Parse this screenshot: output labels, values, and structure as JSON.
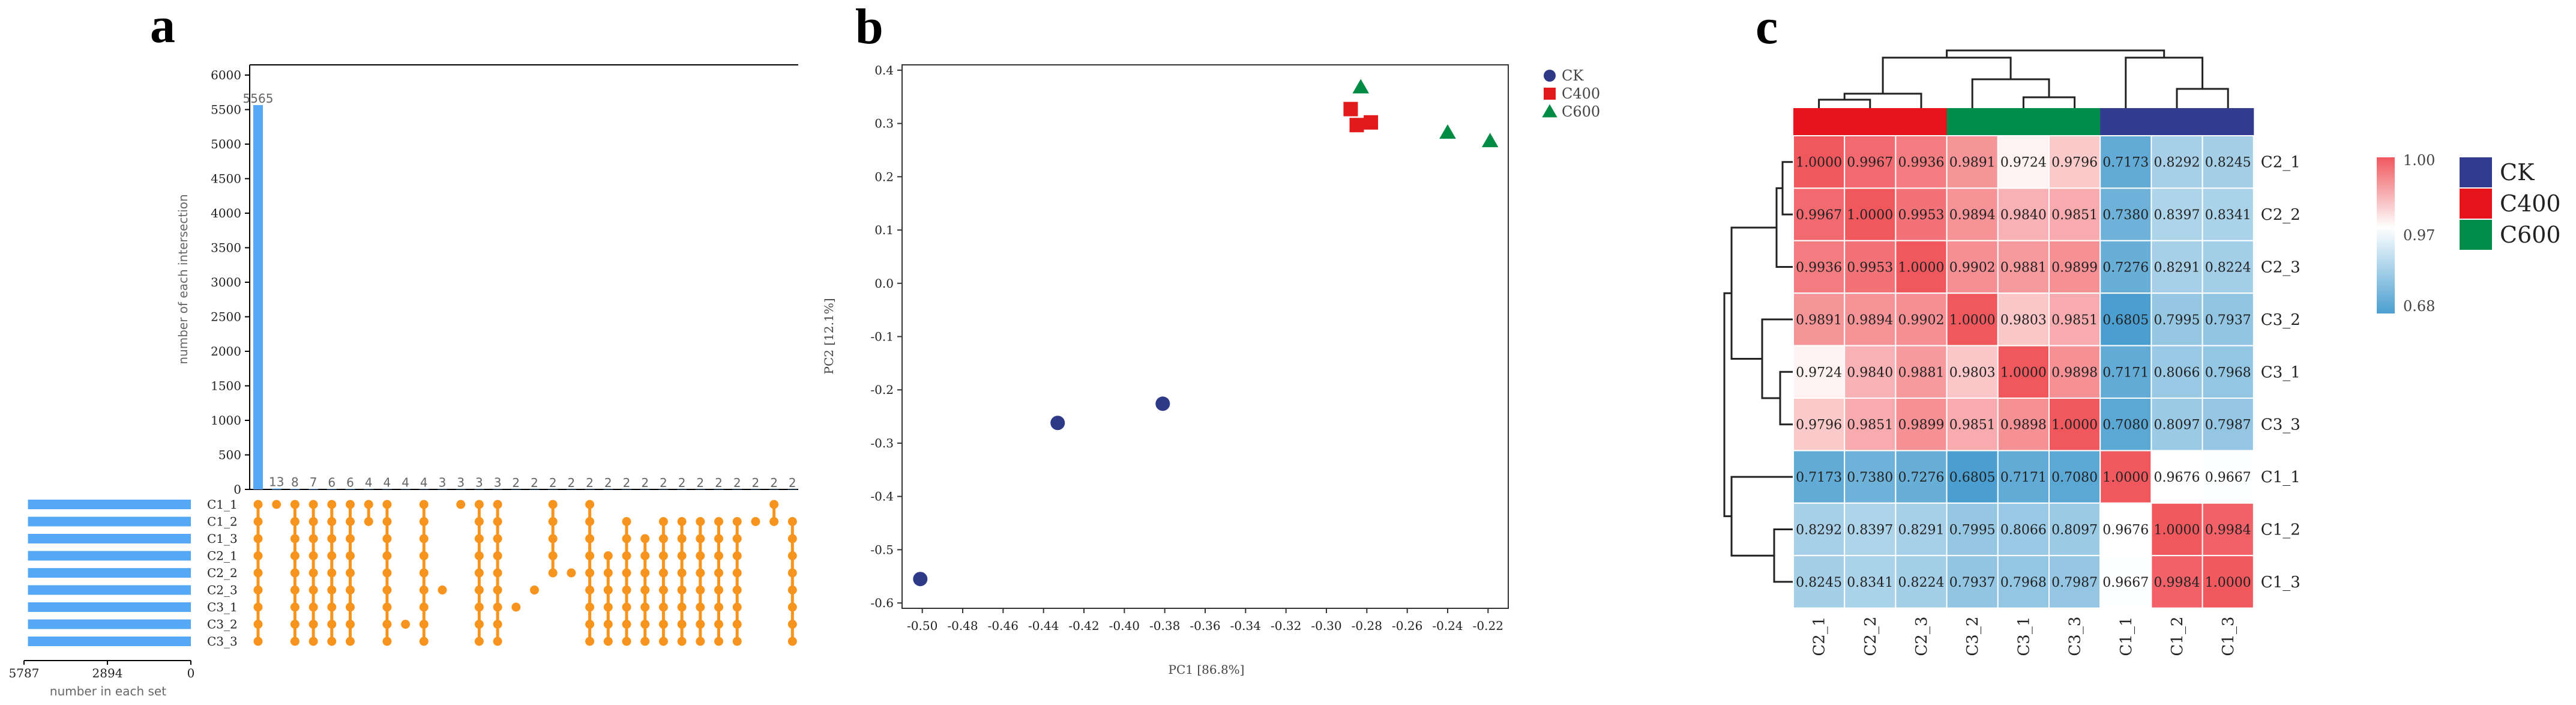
{
  "panels": {
    "a": "a",
    "b": "b",
    "c": "c"
  },
  "chart_data": [
    {
      "type": "bar",
      "panel": "a",
      "ylabel": "number of each intersection",
      "ylim": [
        0,
        6000
      ],
      "yticks": [
        "0",
        "500",
        "1000",
        "1500",
        "2000",
        "2500",
        "3000",
        "3500",
        "4000",
        "4500",
        "5000",
        "5500",
        "6000"
      ],
      "values": [
        5565,
        13,
        8,
        7,
        6,
        6,
        4,
        4,
        4,
        4,
        3,
        3,
        3,
        3,
        2,
        2,
        2,
        2,
        2,
        2,
        2,
        2,
        2,
        2,
        2,
        2,
        2,
        2,
        2,
        2
      ],
      "value_labels": [
        "5565",
        "13",
        "8",
        "7",
        "6",
        "6",
        "4",
        "4",
        "4",
        "4",
        "3",
        "3",
        "3",
        "3",
        "2",
        "2",
        "2",
        "2",
        "2",
        "2",
        "2",
        "2",
        "2",
        "2",
        "2",
        "2",
        "2",
        "2",
        "2",
        "2"
      ],
      "sets": [
        "C1_1",
        "C1_2",
        "C1_3",
        "C2_1",
        "C2_2",
        "C2_3",
        "C3_1",
        "C3_2",
        "C3_3"
      ],
      "set_size_label": "number in each set",
      "set_size_ticks": [
        "5787",
        "2894",
        "0"
      ],
      "set_size_max": 5787,
      "set_sizes": [
        5650,
        5650,
        5650,
        5650,
        5650,
        5650,
        5650,
        5650,
        5650
      ],
      "matrix": [
        [
          0,
          1,
          2,
          3,
          4,
          5,
          6,
          7,
          8
        ],
        [
          0
        ],
        [
          0,
          1,
          2,
          3,
          4,
          5,
          6,
          7,
          8
        ],
        [
          0,
          1,
          2,
          3,
          4,
          5,
          6,
          7,
          8
        ],
        [
          0,
          1,
          2,
          3,
          4,
          5,
          6,
          7,
          8
        ],
        [
          0,
          1,
          2,
          3,
          4,
          5,
          6,
          7,
          8
        ],
        [
          0,
          1
        ],
        [
          0,
          1,
          2,
          3,
          4,
          5,
          6,
          7,
          8
        ],
        [
          7
        ],
        [
          0,
          1,
          2,
          3,
          4,
          5,
          6,
          7,
          8
        ],
        [
          5
        ],
        [
          0
        ],
        [
          0,
          1,
          2,
          3,
          4,
          5,
          6,
          7,
          8
        ],
        [
          0,
          1,
          2,
          3,
          4,
          5,
          6,
          7,
          8
        ],
        [
          6
        ],
        [
          5
        ],
        [
          0,
          1,
          2,
          3,
          4
        ],
        [
          4
        ],
        [
          0,
          1,
          2,
          3,
          4,
          5,
          6,
          7,
          8
        ],
        [
          3,
          4,
          5,
          6,
          7,
          8
        ],
        [
          1,
          2,
          3,
          4,
          5,
          6,
          7,
          8
        ],
        [
          2,
          3,
          4,
          5,
          6,
          7,
          8
        ],
        [
          1,
          2,
          3,
          4,
          5,
          6,
          7,
          8
        ],
        [
          1,
          2,
          3,
          4,
          5,
          6,
          7,
          8
        ],
        [
          1,
          2,
          3,
          4,
          5,
          6,
          7,
          8
        ],
        [
          1,
          2,
          3,
          4,
          5,
          6,
          7,
          8
        ],
        [
          1,
          2,
          3,
          4,
          5,
          6,
          7,
          8
        ],
        [
          1
        ],
        [
          0,
          1
        ],
        [
          1,
          2,
          3,
          4,
          5,
          6,
          7,
          8
        ]
      ],
      "bar_color": "#55a8f5",
      "dot_color": "#f7941d"
    },
    {
      "type": "scatter",
      "panel": "b",
      "xlabel": "PC1 [86.8%]",
      "ylabel": "PC2 [12.1%]",
      "xlim": [
        -0.51,
        -0.21
      ],
      "ylim": [
        -0.61,
        0.41
      ],
      "xticks": [
        "-0.50",
        "-0.48",
        "-0.46",
        "-0.44",
        "-0.42",
        "-0.40",
        "-0.38",
        "-0.36",
        "-0.34",
        "-0.32",
        "-0.30",
        "-0.28",
        "-0.26",
        "-0.24",
        "-0.22"
      ],
      "yticks": [
        "-0.6",
        "-0.5",
        "-0.4",
        "-0.3",
        "-0.2",
        "-0.1",
        "0.0",
        "0.1",
        "0.2",
        "0.3",
        "0.4"
      ],
      "legend_position": "top-right",
      "series": [
        {
          "name": "CK",
          "color": "#2e3a87",
          "marker": "circle",
          "x": [
            -0.501,
            -0.433,
            -0.381
          ],
          "y": [
            -0.555,
            -0.262,
            -0.226
          ]
        },
        {
          "name": "C400",
          "color": "#e31a1c",
          "marker": "square",
          "x": [
            -0.288,
            -0.285,
            -0.278
          ],
          "y": [
            0.327,
            0.297,
            0.302
          ]
        },
        {
          "name": "C600",
          "color": "#008b45",
          "marker": "triangle",
          "x": [
            -0.283,
            -0.24,
            -0.219
          ],
          "y": [
            0.368,
            0.283,
            0.267
          ]
        }
      ]
    },
    {
      "type": "heatmap",
      "panel": "c",
      "row_labels": [
        "C2_1",
        "C2_2",
        "C2_3",
        "C3_2",
        "C3_1",
        "C3_3",
        "C1_1",
        "C1_2",
        "C1_3"
      ],
      "col_labels": [
        "C2_1",
        "C2_2",
        "C2_3",
        "C3_2",
        "C3_1",
        "C3_3",
        "C1_1",
        "C1_2",
        "C1_3"
      ],
      "col_groups": [
        "C400",
        "C400",
        "C400",
        "C600",
        "C600",
        "C600",
        "CK",
        "CK",
        "CK"
      ],
      "values": [
        [
          1.0,
          0.9967,
          0.9936,
          0.9891,
          0.9724,
          0.9796,
          0.7173,
          0.8292,
          0.8245
        ],
        [
          0.9967,
          1.0,
          0.9953,
          0.9894,
          0.984,
          0.9851,
          0.738,
          0.8397,
          0.8341
        ],
        [
          0.9936,
          0.9953,
          1.0,
          0.9902,
          0.9881,
          0.9899,
          0.7276,
          0.8291,
          0.8224
        ],
        [
          0.9891,
          0.9894,
          0.9902,
          1.0,
          0.9803,
          0.9851,
          0.6805,
          0.7995,
          0.7937
        ],
        [
          0.9724,
          0.984,
          0.9881,
          0.9803,
          1.0,
          0.9898,
          0.7171,
          0.8066,
          0.7968
        ],
        [
          0.9796,
          0.9851,
          0.9899,
          0.9851,
          0.9898,
          1.0,
          0.708,
          0.8097,
          0.7987
        ],
        [
          0.7173,
          0.738,
          0.7276,
          0.6805,
          0.7171,
          0.708,
          1.0,
          0.9676,
          0.9667
        ],
        [
          0.8292,
          0.8397,
          0.8291,
          0.7995,
          0.8066,
          0.8097,
          0.9676,
          1.0,
          0.9984
        ],
        [
          0.8245,
          0.8341,
          0.8224,
          0.7937,
          0.7968,
          0.7987,
          0.9667,
          0.9984,
          1.0
        ]
      ],
      "cell_labels": [
        [
          "1.0000",
          "0.9967",
          "0.9936",
          "0.9891",
          "0.9724",
          "0.9796",
          "0.7173",
          "0.8292",
          "0.8245"
        ],
        [
          "0.9967",
          "1.0000",
          "0.9953",
          "0.9894",
          "0.9840",
          "0.9851",
          "0.7380",
          "0.8397",
          "0.8341"
        ],
        [
          "0.9936",
          "0.9953",
          "1.0000",
          "0.9902",
          "0.9881",
          "0.9899",
          "0.7276",
          "0.8291",
          "0.8224"
        ],
        [
          "0.9891",
          "0.9894",
          "0.9902",
          "1.0000",
          "0.9803",
          "0.9851",
          "0.6805",
          "0.7995",
          "0.7937"
        ],
        [
          "0.9724",
          "0.9840",
          "0.9881",
          "0.9803",
          "1.0000",
          "0.9898",
          "0.7171",
          "0.8066",
          "0.7968"
        ],
        [
          "0.9796",
          "0.9851",
          "0.9899",
          "0.9851",
          "0.9898",
          "1.0000",
          "0.7080",
          "0.8097",
          "0.7987"
        ],
        [
          "0.7173",
          "0.7380",
          "0.7276",
          "0.6805",
          "0.7171",
          "0.7080",
          "1.0000",
          "0.9676",
          "0.9667"
        ],
        [
          "0.8292",
          "0.8397",
          "0.8291",
          "0.7995",
          "0.8066",
          "0.8097",
          "0.9676",
          "1.0000",
          "0.9984"
        ],
        [
          "0.8245",
          "0.8341",
          "0.8224",
          "0.7937",
          "0.7968",
          "0.7987",
          "0.9667",
          "0.9984",
          "1.0000"
        ]
      ],
      "color_scale": {
        "min": 0.68,
        "mid": 0.97,
        "max": 1.0,
        "low_color": "#4a9fd0",
        "mid_color": "#ffffff",
        "high_color": "#f0585e"
      },
      "colorbar_labels": [
        "1.00",
        "0.97",
        "0.68"
      ],
      "group_legend": [
        {
          "name": "CK",
          "color": "#333d8f"
        },
        {
          "name": "C400",
          "color": "#e8141b"
        },
        {
          "name": "C600",
          "color": "#008c4a"
        }
      ]
    }
  ]
}
